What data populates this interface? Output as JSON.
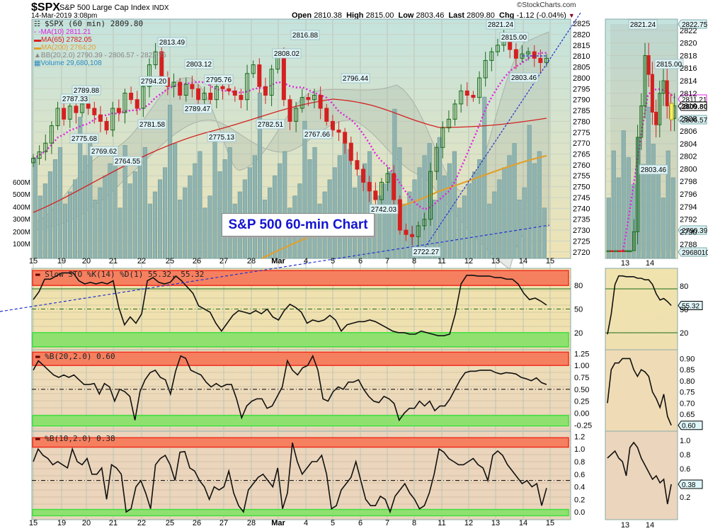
{
  "header": {
    "symbol": "$SPX",
    "name": "S&P 500 Large Cap Index",
    "exchange": "INDX",
    "datetime": "14-Mar-2019 3:08pm",
    "brand": "©StockCharts.com",
    "open_label": "Open",
    "open": "2810.38",
    "high_label": "High",
    "high": "2815.00",
    "low_label": "Low",
    "low": "2803.46",
    "last_label": "Last",
    "last": "2809.80",
    "chg_label": "Chg",
    "chg": "-1.12 (-0.04%)"
  },
  "overlay_title": "S&P 500 60-min Chart",
  "legend": {
    "price": "$SPX (60 min) 2809.80",
    "ma10": "MA(10) 2811.21",
    "ma65": "MA(65) 2782.05",
    "ma200": "MA(200) 2764.20",
    "bb": "BB(20,2.0) 2790.39 - 2806.57 - 2822.75",
    "volume": "Volume 29,680,108"
  },
  "colors": {
    "up": "#1a6b1a",
    "down": "#d42020",
    "ma10": "#e020e0",
    "ma65": "#d42020",
    "ma200": "#e0a030",
    "volume": "#8fb3b0",
    "overbought": "#f58060",
    "oversold": "#90e070",
    "trendline": "#2030d0"
  },
  "chart_data": [
    {
      "type": "candlestick",
      "title": "$SPX (60 min)",
      "x_ticks": [
        "15",
        "19",
        "20",
        "21",
        "22",
        "25",
        "26",
        "27",
        "28",
        "Mar",
        "4",
        "5",
        "6",
        "7",
        "8",
        "11",
        "12",
        "13",
        "14",
        "15"
      ],
      "y_ticks": [
        2720,
        2725,
        2730,
        2735,
        2740,
        2745,
        2750,
        2755,
        2760,
        2765,
        2770,
        2775,
        2780,
        2785,
        2790,
        2795,
        2800,
        2805,
        2810,
        2815,
        2820,
        2825
      ],
      "ylim": [
        2717,
        2827
      ],
      "annotations": [
        "2787.33",
        "2789.88",
        "2775.68",
        "2769.62",
        "2764.55",
        "2794.20",
        "2781.58",
        "2813.49",
        "2789.47",
        "2803.12",
        "2795.76",
        "2775.13",
        "2782.51",
        "2808.02",
        "2816.88",
        "2767.66",
        "2796.44",
        "2742.03",
        "2722.27",
        "2821.24",
        "2815.00",
        "2803.46"
      ],
      "close_path": [
        2763,
        2766,
        2770,
        2778,
        2786,
        2781,
        2787,
        2784,
        2788,
        2786,
        2783,
        2780,
        2776,
        2786,
        2784,
        2793,
        2790,
        2786,
        2796,
        2806,
        2812,
        2800,
        2796,
        2798,
        2792,
        2797,
        2795,
        2790,
        2793,
        2790,
        2796,
        2795,
        2794,
        2792,
        2790,
        2802,
        2806,
        2796,
        2792,
        2804,
        2810,
        2790,
        2780,
        2786,
        2791,
        2790,
        2792,
        2786,
        2780,
        2776,
        2775,
        2770,
        2762,
        2758,
        2752,
        2748,
        2744,
        2752,
        2756,
        2744,
        2730,
        2728,
        2727,
        2732,
        2735,
        2757,
        2768,
        2777,
        2781,
        2788,
        2794,
        2792,
        2791,
        2800,
        2808,
        2812,
        2815,
        2818,
        2813,
        2809,
        2811,
        2812,
        2809,
        2807,
        2809
      ],
      "volume_axis": [
        "100M",
        "200M",
        "300M",
        "400M",
        "500M",
        "600M"
      ],
      "right_labels": {
        "bb_upper": "2822.75",
        "ma10": "2811.21",
        "last": "2809.80",
        "bb_mid": "2806.57",
        "bb_lower": "2790.39",
        "volume": "29680108"
      }
    },
    {
      "type": "line",
      "title": "Slow STO %K(14) %D(1) 55.32, 55.32",
      "y_ticks": [
        20,
        50,
        80
      ],
      "ylim": [
        0,
        100
      ],
      "values": [
        62,
        72,
        88,
        88,
        92,
        96,
        96,
        96,
        86,
        82,
        84,
        82,
        84,
        82,
        86,
        52,
        30,
        40,
        32,
        44,
        86,
        90,
        84,
        82,
        84,
        92,
        86,
        78,
        70,
        54,
        50,
        46,
        32,
        22,
        32,
        42,
        48,
        46,
        44,
        48,
        44,
        50,
        40,
        36,
        48,
        56,
        52,
        46,
        32,
        36,
        34,
        36,
        42,
        36,
        22,
        30,
        32,
        34,
        34,
        36,
        34,
        30,
        26,
        22,
        20,
        20,
        18,
        18,
        22,
        20,
        18,
        16,
        16,
        18,
        44,
        82,
        93,
        93,
        92,
        92,
        92,
        90,
        90,
        88,
        88,
        82,
        70,
        62,
        64,
        60,
        55
      ],
      "last": "55.32"
    },
    {
      "type": "line",
      "title": "%B(20,2.0) 0.60",
      "y_ticks": [
        -0.25,
        0,
        0.25,
        0.5,
        0.75,
        1.0,
        1.25
      ],
      "ylim": [
        -0.35,
        1.3
      ],
      "values": [
        0.9,
        1.1,
        1.0,
        0.9,
        0.8,
        0.75,
        0.8,
        0.75,
        0.8,
        0.7,
        0.6,
        0.6,
        0.62,
        0.4,
        0.62,
        0.55,
        0.25,
        0.5,
        0.45,
        0.35,
        -0.15,
        0.45,
        0.7,
        0.85,
        0.9,
        0.75,
        0.7,
        0.4,
        0.88,
        1.2,
        1.15,
        0.9,
        0.85,
        0.8,
        0.65,
        0.55,
        0.62,
        0.55,
        0.6,
        0.6,
        0.3,
        -0.1,
        0.15,
        0.25,
        0.3,
        0.3,
        0.1,
        0.15,
        0.35,
        0.55,
        1.1,
        0.9,
        0.8,
        0.95,
        1.0,
        1.2,
        0.9,
        0.3,
        0.25,
        0.45,
        0.55,
        0.5,
        0.65,
        0.65,
        0.7,
        0.5,
        0.35,
        0.25,
        0.22,
        0.35,
        0.3,
        0.2,
        -0.15,
        0.0,
        0.1,
        0.1,
        0.25,
        0.15,
        0.25,
        0.05,
        0.15,
        0.15,
        0.3,
        0.5,
        0.7,
        0.85,
        0.88,
        0.88,
        0.9,
        0.9,
        0.9,
        0.85,
        0.82,
        0.85,
        0.84,
        0.82,
        0.75,
        0.72,
        0.68,
        0.74,
        0.64,
        0.6
      ],
      "last": "0.60"
    },
    {
      "type": "line",
      "title": "%B(10,2.0) 0.38",
      "y_ticks": [
        0.0,
        0.2,
        0.4,
        0.6,
        0.8,
        1.0,
        1.2
      ],
      "ylim": [
        -0.1,
        1.25
      ],
      "values": [
        0.8,
        1.0,
        0.9,
        0.85,
        0.75,
        0.8,
        0.75,
        0.7,
        1.0,
        0.8,
        0.75,
        0.85,
        0.6,
        0.6,
        0.7,
        0.2,
        0.75,
        0.7,
        0.6,
        0.0,
        0.05,
        0.4,
        0.5,
        0.3,
        0.05,
        0.75,
        0.85,
        0.9,
        0.75,
        0.5,
        0.95,
        0.96,
        0.7,
        0.65,
        0.5,
        0.4,
        0.2,
        0.4,
        0.35,
        0.4,
        0.65,
        0.3,
        0.1,
        0.0,
        0.35,
        0.45,
        0.55,
        0.6,
        0.5,
        0.4,
        0.7,
        0.05,
        0.3,
        1.1,
        0.8,
        0.6,
        0.7,
        0.8,
        0.8,
        0.9,
        0.6,
        0.05,
        0.1,
        0.35,
        0.45,
        0.55,
        0.8,
        0.5,
        0.2,
        0.1,
        0.1,
        0.25,
        0.2,
        0.0,
        0.25,
        0.35,
        0.45,
        0.3,
        0.2,
        0.05,
        0.1,
        0.3,
        0.6,
        1.0,
        0.95,
        0.85,
        0.8,
        0.75,
        0.75,
        0.8,
        0.85,
        0.75,
        0.7,
        0.5,
        0.9,
        0.97,
        0.9,
        0.75,
        0.65,
        0.55,
        0.45,
        0.5,
        0.4,
        0.45,
        0.1,
        0.38
      ],
      "last": "0.38"
    }
  ]
}
